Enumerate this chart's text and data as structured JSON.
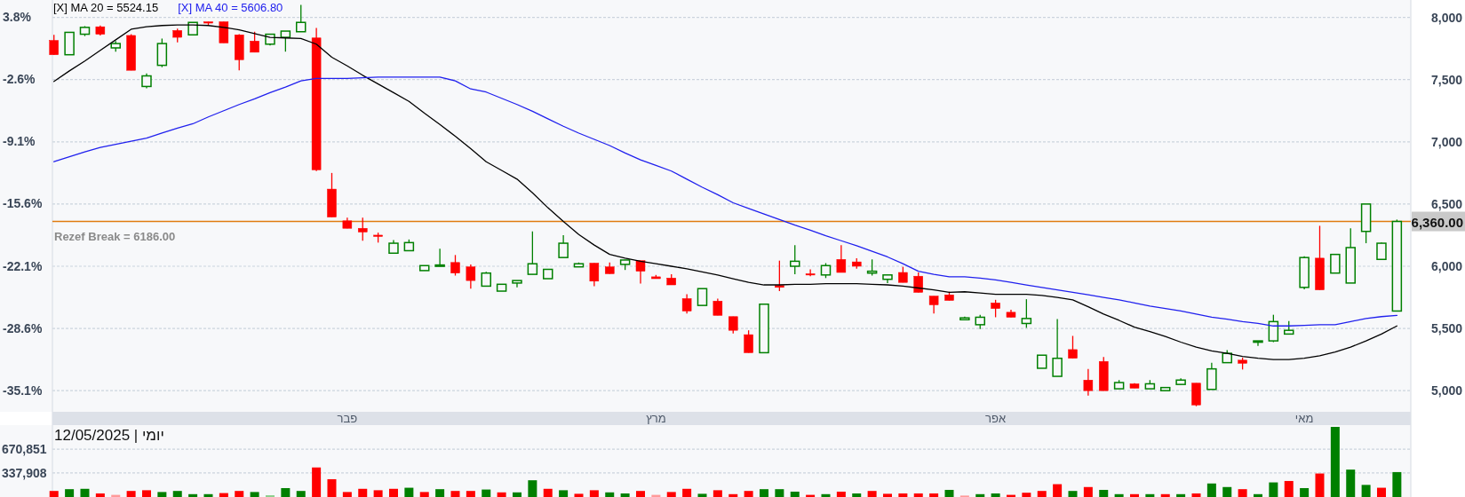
{
  "chart_data": [
    {
      "type": "candlestick",
      "categories": [
        null,
        null,
        null,
        null,
        null,
        null,
        null,
        null,
        null,
        null,
        null,
        null,
        null,
        null,
        null,
        null,
        null,
        null,
        null,
        "פבר",
        null,
        null,
        null,
        null,
        null,
        null,
        null,
        null,
        null,
        null,
        null,
        null,
        null,
        null,
        null,
        null,
        null,
        null,
        null,
        "מרץ",
        null,
        null,
        null,
        null,
        null,
        null,
        null,
        null,
        null,
        null,
        null,
        null,
        null,
        null,
        null,
        null,
        null,
        null,
        null,
        null,
        null,
        "אפר",
        null,
        null,
        null,
        null,
        null,
        null,
        null,
        null,
        null,
        null,
        null,
        null,
        null,
        null,
        null,
        null,
        null,
        null,
        null,
        "מאי",
        null,
        null,
        null,
        null,
        null,
        null
      ],
      "ohlc": [
        [
          7815,
          7860,
          7700,
          7700
        ],
        [
          7700,
          7880,
          7700,
          7880
        ],
        [
          7865,
          7930,
          7850,
          7920
        ],
        [
          7925,
          7935,
          7855,
          7865
        ],
        [
          7755,
          7810,
          7725,
          7790
        ],
        [
          7855,
          7865,
          7575,
          7575
        ],
        [
          7445,
          7550,
          7430,
          7530
        ],
        [
          7615,
          7830,
          7600,
          7790
        ],
        [
          7895,
          7910,
          7800,
          7840
        ],
        [
          7860,
          7960,
          7860,
          7960
        ],
        [
          7965,
          7965,
          7935,
          7960
        ],
        [
          7965,
          7965,
          7795,
          7795
        ],
        [
          7860,
          7865,
          7575,
          7660
        ],
        [
          7810,
          7885,
          7720,
          7720
        ],
        [
          7785,
          7865,
          7775,
          7865
        ],
        [
          7840,
          7890,
          7725,
          7890
        ],
        [
          7885,
          8100,
          7885,
          7960
        ],
        [
          7835,
          7915,
          6765,
          6775
        ],
        [
          6620,
          6750,
          6395,
          6395
        ],
        [
          6365,
          6390,
          6305,
          6305
        ],
        [
          6305,
          6390,
          6205,
          6275
        ],
        [
          6250,
          6270,
          6190,
          6245
        ],
        [
          6105,
          6210,
          6105,
          6185
        ],
        [
          6125,
          6215,
          6125,
          6190
        ],
        [
          5965,
          6005,
          5965,
          6005
        ],
        [
          6000,
          6140,
          6000,
          6010
        ],
        [
          6030,
          6090,
          5925,
          5945
        ],
        [
          5995,
          6015,
          5820,
          5885
        ],
        [
          5840,
          5955,
          5840,
          5945
        ],
        [
          5800,
          5855,
          5800,
          5855
        ],
        [
          5865,
          5885,
          5830,
          5885
        ],
        [
          5935,
          6280,
          5935,
          6020
        ],
        [
          5900,
          5975,
          5900,
          5975
        ],
        [
          6070,
          6250,
          6070,
          6185
        ],
        [
          5995,
          6030,
          5995,
          6020
        ],
        [
          6025,
          6025,
          5840,
          5880
        ],
        [
          5995,
          6030,
          5940,
          5940
        ],
        [
          6015,
          6050,
          5970,
          6050
        ],
        [
          6045,
          6045,
          5860,
          5960
        ],
        [
          5915,
          5930,
          5900,
          5900
        ],
        [
          5905,
          5935,
          5850,
          5850
        ],
        [
          5740,
          5775,
          5620,
          5640
        ],
        [
          5685,
          5820,
          5685,
          5820
        ],
        [
          5720,
          5740,
          5605,
          5605
        ],
        [
          5595,
          5595,
          5460,
          5485
        ],
        [
          5450,
          5485,
          5305,
          5305
        ],
        [
          5305,
          5695,
          5305,
          5695
        ],
        [
          5845,
          6045,
          5800,
          5830
        ],
        [
          6000,
          6170,
          5935,
          6040
        ],
        [
          5940,
          5975,
          5920,
          5935
        ],
        [
          5930,
          6025,
          5905,
          6005
        ],
        [
          6055,
          6170,
          5950,
          5950
        ],
        [
          6035,
          6065,
          5980,
          6000
        ],
        [
          5945,
          6055,
          5925,
          5960
        ],
        [
          5895,
          5930,
          5865,
          5930
        ],
        [
          5950,
          5995,
          5870,
          5870
        ],
        [
          5920,
          5950,
          5790,
          5790
        ],
        [
          5760,
          5760,
          5620,
          5690
        ],
        [
          5770,
          5795,
          5725,
          5725
        ],
        [
          5570,
          5595,
          5565,
          5585
        ],
        [
          5530,
          5610,
          5495,
          5590
        ],
        [
          5705,
          5730,
          5590,
          5660
        ],
        [
          5630,
          5650,
          5590,
          5590
        ],
        [
          5540,
          5735,
          5505,
          5580
        ],
        [
          5180,
          5285,
          5180,
          5285
        ],
        [
          5115,
          5575,
          5115,
          5260
        ],
        [
          5330,
          5440,
          5260,
          5260
        ],
        [
          5085,
          5175,
          4960,
          5000
        ],
        [
          5235,
          5270,
          5000,
          5000
        ],
        [
          5015,
          5085,
          5015,
          5065
        ],
        [
          5055,
          5060,
          5020,
          5020
        ],
        [
          5015,
          5085,
          5015,
          5055
        ],
        [
          5000,
          5030,
          5000,
          5025
        ],
        [
          5050,
          5100,
          5050,
          5085
        ],
        [
          5060,
          5060,
          4875,
          4885
        ],
        [
          5010,
          5225,
          5010,
          5175
        ],
        [
          5225,
          5325,
          5225,
          5300
        ],
        [
          5245,
          5265,
          5170,
          5220
        ],
        [
          5390,
          5400,
          5360,
          5400
        ],
        [
          5400,
          5610,
          5390,
          5555
        ],
        [
          5455,
          5560,
          5455,
          5485
        ],
        [
          5830,
          6080,
          5815,
          6070
        ],
        [
          6065,
          6325,
          5810,
          5810
        ],
        [
          5945,
          6095,
          5945,
          6095
        ],
        [
          5865,
          6305,
          5865,
          6150
        ],
        [
          6280,
          6500,
          6185,
          6500
        ],
        [
          6055,
          6190,
          6055,
          6185
        ],
        [
          5640,
          6375,
          5640,
          6360
        ]
      ],
      "series": [
        {
          "name": "[X] MA 20 = 5524.15",
          "type": "line",
          "color": "#000000",
          "values": [
            7485,
            7570,
            7650,
            7735,
            7820,
            7905,
            7925,
            7935,
            7940,
            7940,
            7935,
            7920,
            7900,
            7870,
            7840,
            7835,
            7830,
            7785,
            7680,
            7610,
            7535,
            7465,
            7395,
            7325,
            7230,
            7140,
            7045,
            6945,
            6840,
            6770,
            6700,
            6590,
            6470,
            6360,
            6255,
            6170,
            6095,
            6065,
            6040,
            6020,
            6000,
            5980,
            5955,
            5930,
            5900,
            5870,
            5850,
            5850,
            5855,
            5855,
            5860,
            5860,
            5860,
            5855,
            5850,
            5840,
            5825,
            5810,
            5790,
            5795,
            5785,
            5775,
            5775,
            5775,
            5765,
            5750,
            5730,
            5675,
            5615,
            5565,
            5510,
            5475,
            5435,
            5390,
            5350,
            5320,
            5300,
            5275,
            5260,
            5250,
            5250,
            5260,
            5280,
            5310,
            5350,
            5400,
            5455,
            5520
          ]
        },
        {
          "name": "[X] MA 40 = 5606.80",
          "type": "line",
          "color": "#2020ee",
          "values": [
            6840,
            6880,
            6920,
            6955,
            6980,
            7005,
            7030,
            7070,
            7110,
            7145,
            7200,
            7250,
            7300,
            7345,
            7395,
            7440,
            7490,
            7510,
            7510,
            7510,
            7515,
            7520,
            7520,
            7520,
            7520,
            7520,
            7490,
            7425,
            7400,
            7350,
            7300,
            7245,
            7185,
            7125,
            7070,
            7020,
            6970,
            6910,
            6855,
            6810,
            6765,
            6700,
            6635,
            6575,
            6510,
            6465,
            6420,
            6375,
            6330,
            6290,
            6245,
            6205,
            6165,
            6120,
            6075,
            6020,
            5960,
            5935,
            5915,
            5915,
            5905,
            5890,
            5870,
            5850,
            5830,
            5810,
            5790,
            5770,
            5750,
            5730,
            5705,
            5680,
            5660,
            5640,
            5615,
            5590,
            5575,
            5555,
            5540,
            5520,
            5520,
            5525,
            5530,
            5530,
            5555,
            5580,
            5595,
            5605
          ]
        }
      ],
      "ylim": [
        4830,
        8140
      ],
      "yticks": [
        {
          "value": 5000,
          "label": "5,000"
        },
        {
          "value": 5500,
          "label": "5,500"
        },
        {
          "value": 6000,
          "label": "6,000"
        },
        {
          "value": 6500,
          "label": "6,500"
        },
        {
          "value": 7000,
          "label": "7,000"
        },
        {
          "value": 7500,
          "label": "7,500"
        },
        {
          "value": 8000,
          "label": "8,000"
        }
      ],
      "y2lim": [
        -37.3,
        5.6
      ],
      "y2ticks": [
        {
          "value": 3.8,
          "label": "3.8%"
        },
        {
          "value": -2.6,
          "label": "-2.6%"
        },
        {
          "value": -9.1,
          "label": "-9.1%"
        },
        {
          "value": -15.6,
          "label": "-15.6%"
        },
        {
          "value": -22.1,
          "label": "-22.1%"
        },
        {
          "value": -28.6,
          "label": "-28.6%"
        },
        {
          "value": -35.1,
          "label": "-35.1%"
        }
      ],
      "grid": "y",
      "legend": "top left",
      "ref_lines": [
        {
          "axis": "y",
          "value": 6360,
          "label": "6,360.00",
          "color": "#e07b10"
        }
      ],
      "annotations": [
        "Rezef Break = 6186.00"
      ]
    },
    {
      "type": "bar",
      "title": "יומי | 12/05/2025",
      "categories": [
        null,
        null,
        null,
        null,
        null,
        null,
        null,
        null,
        null,
        null,
        null,
        null,
        null,
        null,
        null,
        null,
        null,
        null,
        null,
        null,
        null,
        null,
        null,
        null,
        null,
        null,
        null,
        null,
        null,
        null,
        null,
        null,
        null,
        null,
        null,
        null,
        null,
        null,
        null,
        null,
        null,
        null,
        null,
        null,
        null,
        null,
        null,
        null,
        null,
        null,
        null,
        null,
        null,
        null,
        null,
        null,
        null,
        null,
        null,
        null,
        null,
        null,
        null,
        null,
        null,
        null,
        null,
        null,
        null,
        null,
        null,
        null,
        null,
        null,
        null,
        null,
        null,
        null,
        null,
        null,
        null,
        null,
        null,
        null,
        null,
        null,
        null,
        null
      ],
      "values": [
        85000,
        110000,
        115000,
        50000,
        30000,
        85000,
        95000,
        70000,
        85000,
        40000,
        40000,
        55000,
        85000,
        70000,
        25000,
        125000,
        85000,
        415000,
        250000,
        70000,
        115000,
        95000,
        115000,
        130000,
        70000,
        110000,
        85000,
        85000,
        105000,
        65000,
        65000,
        235000,
        115000,
        95000,
        45000,
        95000,
        65000,
        50000,
        85000,
        30000,
        70000,
        115000,
        45000,
        95000,
        40000,
        85000,
        110000,
        110000,
        75000,
        30000,
        40000,
        75000,
        50000,
        85000,
        45000,
        50000,
        50000,
        50000,
        100000,
        20000,
        40000,
        50000,
        30000,
        60000,
        85000,
        180000,
        85000,
        140000,
        100000,
        40000,
        40000,
        40000,
        40000,
        40000,
        50000,
        190000,
        140000,
        110000,
        40000,
        205000,
        225000,
        125000,
        330000,
        985000,
        385000,
        170000,
        130000,
        350000
      ],
      "colors": [
        "#ff0000",
        "#008000",
        "#008000",
        "#ff0000",
        "#ff9a9a",
        "#ff0000",
        "#ff0000",
        "#008000",
        "#008000",
        "#008000",
        "#008000",
        "#ff0000",
        "#ff0000",
        "#008000",
        "#8fcf8f",
        "#008000",
        "#008000",
        "#ff0000",
        "#ff0000",
        "#ff0000",
        "#ff0000",
        "#ff0000",
        "#ff0000",
        "#008000",
        "#ff0000",
        "#008000",
        "#ff0000",
        "#ff0000",
        "#008000",
        "#ff0000",
        "#008000",
        "#008000",
        "#ff0000",
        "#008000",
        "#ff0000",
        "#ff0000",
        "#008000",
        "#008000",
        "#ff0000",
        "#ff9a9a",
        "#ff0000",
        "#ff0000",
        "#008000",
        "#ff0000",
        "#ff0000",
        "#ff0000",
        "#008000",
        "#008000",
        "#008000",
        "#ff0000",
        "#008000",
        "#ff0000",
        "#008000",
        "#ff0000",
        "#ff0000",
        "#ff0000",
        "#ff0000",
        "#ff0000",
        "#008000",
        "#ff9a9a",
        "#008000",
        "#008000",
        "#ff0000",
        "#ff0000",
        "#ff0000",
        "#ff0000",
        "#008000",
        "#ff0000",
        "#008000",
        "#008000",
        "#ff0000",
        "#008000",
        "#ff0000",
        "#008000",
        "#ff0000",
        "#008000",
        "#008000",
        "#ff0000",
        "#008000",
        "#008000",
        "#ff0000",
        "#008000",
        "#ff0000",
        "#008000",
        "#008000",
        "#008000",
        "#ff0000",
        "#008000"
      ],
      "ylim": [
        0,
        1010000
      ],
      "yticks": [
        {
          "value": 337908,
          "label": "337,908"
        },
        {
          "value": 670851,
          "label": "670,851"
        }
      ],
      "grid": "y",
      "tick_labels": "y"
    }
  ]
}
